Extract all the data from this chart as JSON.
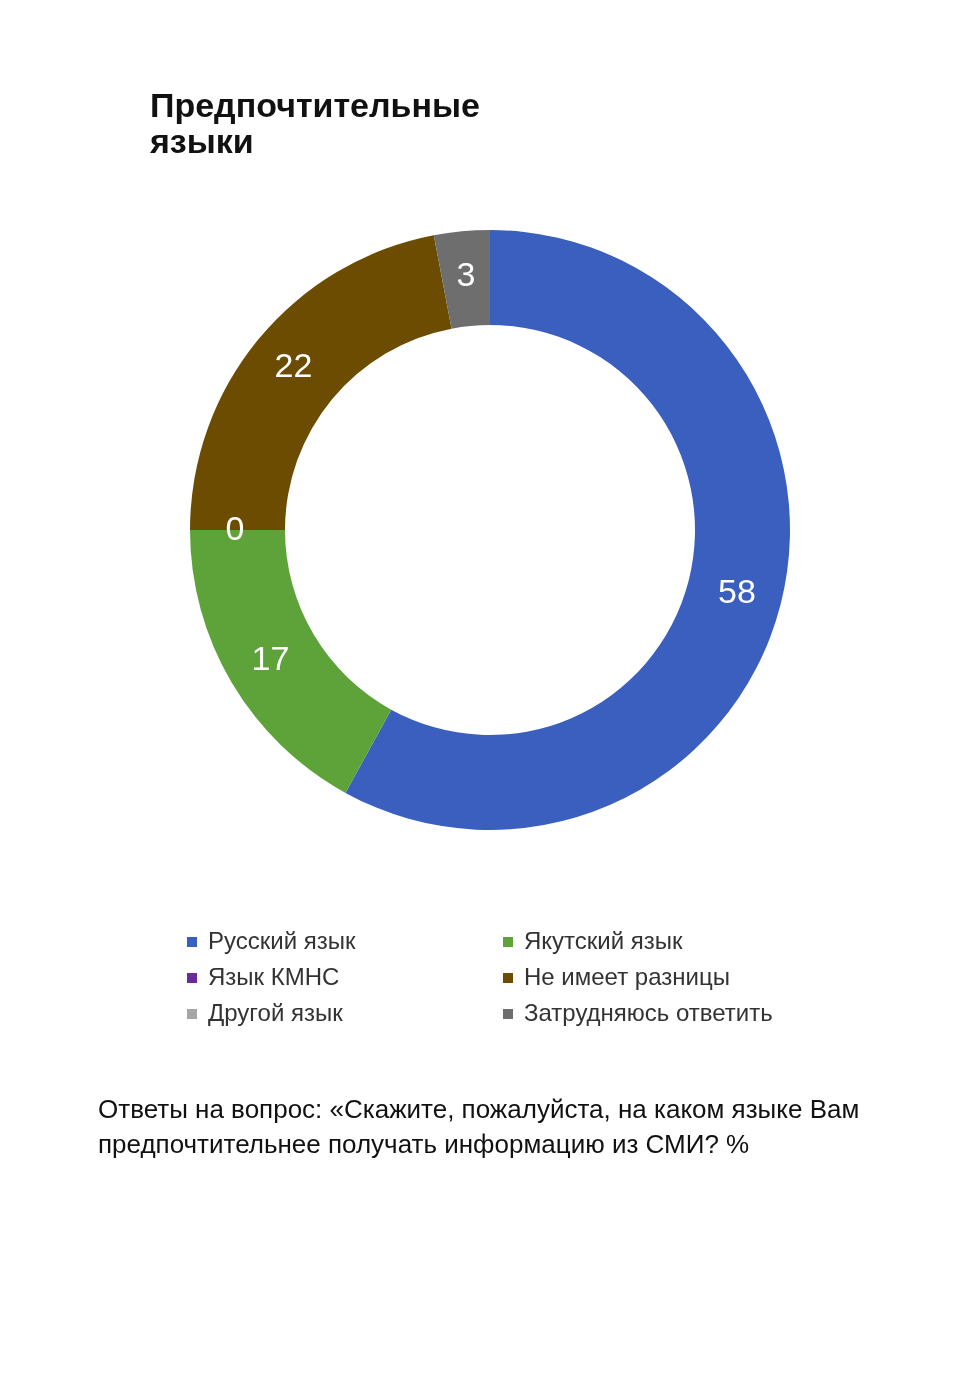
{
  "chart_data": {
    "type": "donut",
    "title": "Предпочтительные языки",
    "categories": [
      "Русский язык",
      "Якутский язык",
      "Язык КМНС",
      "Не имеет разницы",
      "Другой язык",
      "Затрудняюсь ответить"
    ],
    "values": [
      58,
      17,
      0,
      22,
      0,
      3
    ],
    "colors": [
      "#3a5fbf",
      "#5ea33a",
      "#6a2a9a",
      "#6b4c00",
      "#a6a6a6",
      "#6e6e6e"
    ],
    "value_labels": [
      "58",
      "17",
      "0",
      "22",
      null,
      "3"
    ],
    "legend": "bottom",
    "annotations": [
      "Ответы на вопрос: «Скажите, пожалуйста, на каком языке Вам предпочтительнее получать информацию из СМИ? %"
    ]
  }
}
